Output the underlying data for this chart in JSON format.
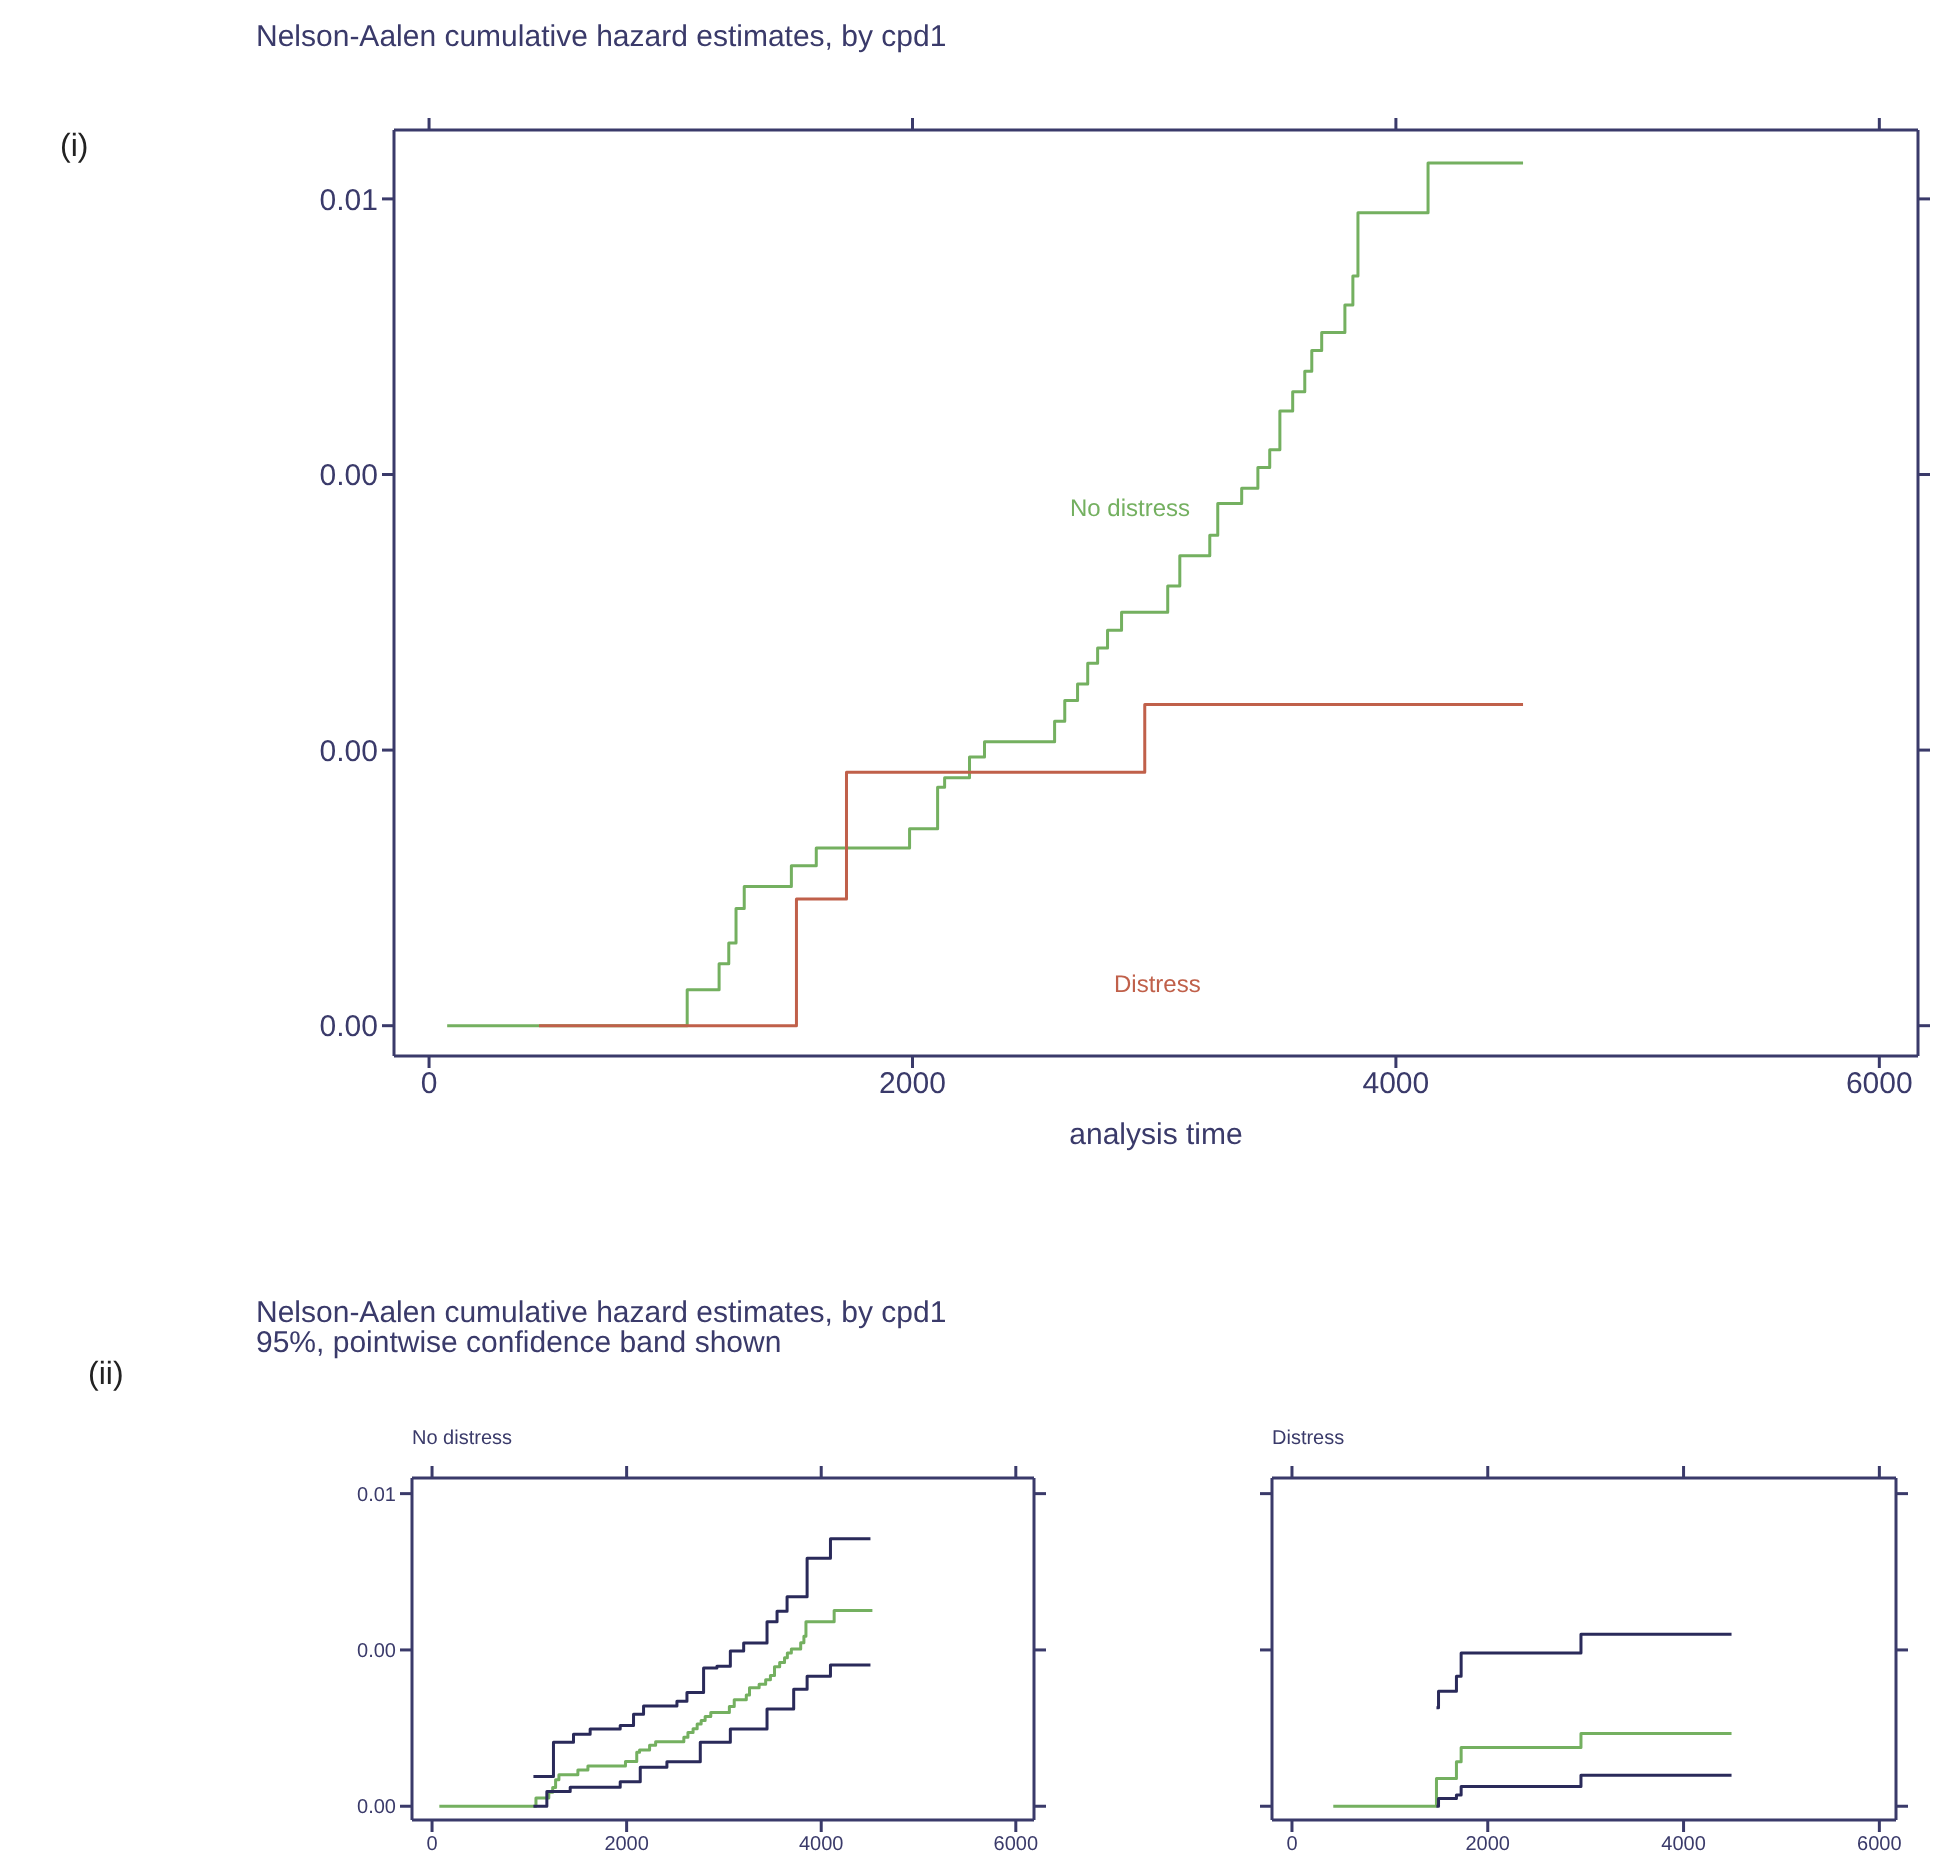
{
  "chart_data": [
    {
      "type": "step",
      "title": "Nelson-Aalen cumulative hazard estimates, by cpd1",
      "xlabel": "analysis time",
      "xlim": [
        -145,
        6160
      ],
      "xticks": [
        0,
        2000,
        4000,
        6000
      ],
      "ylim": [
        -0.00022,
        0.0065
      ],
      "yticks": [
        {
          "value": 0,
          "label": "0.00"
        },
        {
          "value": 0.002,
          "label": "0.00"
        },
        {
          "value": 0.004,
          "label": "0.00"
        },
        {
          "value": 0.006,
          "label": "0.01"
        }
      ],
      "grid": false,
      "legend": false,
      "line_style": "solid",
      "marker": "none",
      "annotations": [
        "(i)",
        "No distress",
        "Distress"
      ],
      "series": [
        {
          "color": "#74b060",
          "x": [
            75,
            1068,
            1200,
            1240,
            1270,
            1304,
            1499,
            1602,
            1988,
            2104,
            2133,
            2236,
            2298,
            2588,
            2630,
            2683,
            2725,
            2766,
            2807,
            2865,
            3056,
            3106,
            3230,
            3263,
            3362,
            3429,
            3478,
            3520,
            3573,
            3623,
            3652,
            3693,
            3789,
            3822,
            3843,
            4133,
            4526
          ],
          "values": [
            0,
            0.00026,
            0.00045,
            0.0006,
            0.00085,
            0.00101,
            0.00116,
            0.00129,
            0.00143,
            0.00173,
            0.0018,
            0.00195,
            0.00206,
            0.00221,
            0.00236,
            0.00248,
            0.00263,
            0.00274,
            0.00287,
            0.003,
            0.00319,
            0.00341,
            0.00356,
            0.00379,
            0.0039,
            0.00405,
            0.00418,
            0.00446,
            0.0046,
            0.00475,
            0.0049,
            0.00503,
            0.00523,
            0.00544,
            0.0059,
            0.00626,
            0.00626
          ]
        },
        {
          "color": "#c0604a",
          "x": [
            455,
            1520,
            1727,
            2961,
            4526
          ],
          "values": [
            0,
            0.00092,
            0.00184,
            0.00233,
            0.00233
          ]
        }
      ]
    },
    {
      "type": "step",
      "title": "No distress",
      "annotations": [
        "(ii)",
        "Nelson-Aalen cumulative hazard estimates, by cpd1",
        "95%, pointwise confidence band shown"
      ],
      "xlim": [
        -206,
        6187
      ],
      "xticks": [
        0,
        2000,
        4000,
        6000
      ],
      "ylim": [
        -0.00044,
        0.0105
      ],
      "yticks": [
        {
          "value": 0,
          "label": "0.00"
        },
        {
          "value": 0.005,
          "label": "0.00"
        },
        {
          "value": 0.01,
          "label": "0.01"
        }
      ],
      "grid": false,
      "legend": false,
      "line_style": "solid",
      "marker": "none",
      "series": [
        {
          "color": "#2a2a5a",
          "x": [
            1042,
            1248,
            1454,
            1625,
            1934,
            2071,
            2174,
            2517,
            2620,
            2791,
            2928,
            3066,
            3203,
            3443,
            3546,
            3649,
            3855,
            4095,
            4506
          ],
          "values": [
            0.00095,
            0.00205,
            0.0023,
            0.00247,
            0.00258,
            0.00294,
            0.00321,
            0.00336,
            0.00364,
            0.00442,
            0.00448,
            0.00497,
            0.00522,
            0.0059,
            0.00624,
            0.0067,
            0.00793,
            0.00856,
            0.00856
          ]
        },
        {
          "color": "#74b060",
          "x": [
            75,
            1068,
            1200,
            1240,
            1270,
            1304,
            1499,
            1602,
            1988,
            2104,
            2133,
            2236,
            2298,
            2588,
            2630,
            2683,
            2725,
            2766,
            2807,
            2865,
            3056,
            3106,
            3230,
            3263,
            3362,
            3429,
            3478,
            3520,
            3573,
            3623,
            3652,
            3693,
            3789,
            3822,
            3843,
            4133,
            4526
          ],
          "values": [
            0,
            0.00026,
            0.00045,
            0.0006,
            0.00085,
            0.00101,
            0.00116,
            0.00129,
            0.00143,
            0.00173,
            0.0018,
            0.00195,
            0.00206,
            0.00221,
            0.00236,
            0.00248,
            0.00263,
            0.00274,
            0.00287,
            0.003,
            0.00319,
            0.00341,
            0.00356,
            0.00379,
            0.0039,
            0.00405,
            0.00418,
            0.00446,
            0.0046,
            0.00475,
            0.0049,
            0.00503,
            0.00523,
            0.00544,
            0.0059,
            0.00626,
            0.00626
          ]
        },
        {
          "color": "#2a2a5a",
          "x": [
            1042,
            1180,
            1420,
            1934,
            2140,
            2414,
            2757,
            3066,
            3443,
            3717,
            3855,
            4095,
            4506
          ],
          "values": [
            0,
            0.00047,
            0.00061,
            0.00078,
            0.00125,
            0.00142,
            0.00205,
            0.00247,
            0.00311,
            0.00374,
            0.00416,
            0.00452,
            0.00452
          ]
        }
      ]
    },
    {
      "type": "step",
      "title": "Distress",
      "tick_labels": "x",
      "xlim": [
        -204,
        6170
      ],
      "xticks": [
        0,
        2000,
        4000,
        6000
      ],
      "ylim": [
        -0.00044,
        0.0105
      ],
      "yticks": [
        {
          "value": 0,
          "label": null
        },
        {
          "value": 0.005,
          "label": null
        },
        {
          "value": 0.01,
          "label": null
        }
      ],
      "grid": false,
      "legend": false,
      "line_style": "solid",
      "marker": "none",
      "series": [
        {
          "color": "#2a2a5a",
          "x": [
            1476,
            1497,
            1680,
            1728,
            2952,
            4490
          ],
          "values": [
            0.00315,
            0.00368,
            0.00416,
            0.0049,
            0.0055,
            0.0055
          ]
        },
        {
          "color": "#74b060",
          "x": [
            422,
            1476,
            1680,
            1728,
            2952,
            4490
          ],
          "values": [
            0,
            0.00089,
            0.00142,
            0.00188,
            0.00233,
            0.00233
          ]
        },
        {
          "color": "#2a2a5a",
          "x": [
            1476,
            1497,
            1680,
            1728,
            2952,
            4490
          ],
          "values": [
            0,
            0.00025,
            0.00036,
            0.00063,
            0.00099,
            0.00099
          ]
        }
      ]
    }
  ]
}
